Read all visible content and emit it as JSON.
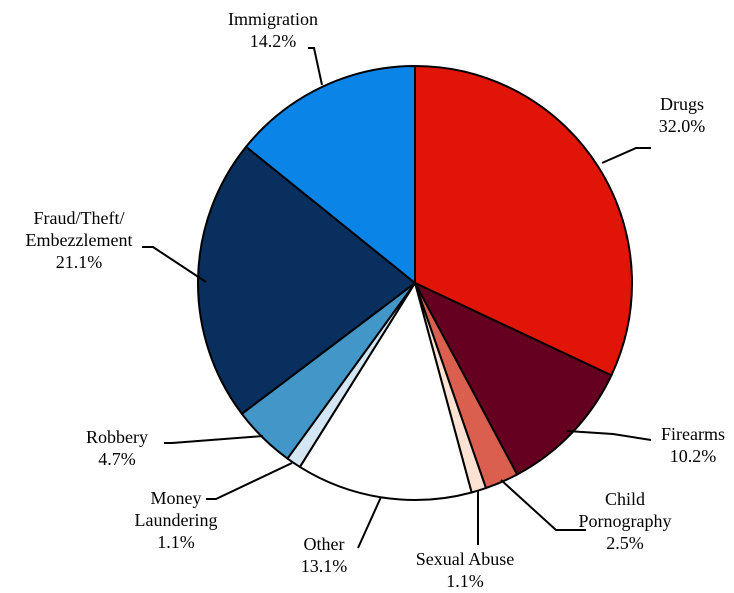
{
  "chart_data": {
    "type": "pie",
    "title": "",
    "slices": [
      {
        "label": "Drugs",
        "label_lines": [
          "Drugs"
        ],
        "value": 32.0,
        "value_text": "32.0%",
        "color": "#E01407"
      },
      {
        "label": "Firearms",
        "label_lines": [
          "Firearms"
        ],
        "value": 10.2,
        "value_text": "10.2%",
        "color": "#660020"
      },
      {
        "label": "Child Pornography",
        "label_lines": [
          "Child",
          "Pornography"
        ],
        "value": 2.5,
        "value_text": "2.5%",
        "color": "#DB5F4F"
      },
      {
        "label": "Sexual Abuse",
        "label_lines": [
          "Sexual Abuse"
        ],
        "value": 1.1,
        "value_text": "1.1%",
        "color": "#FCE2D2"
      },
      {
        "label": "Other",
        "label_lines": [
          "Other"
        ],
        "value": 13.1,
        "value_text": "13.1%",
        "color": "#FFFFFF"
      },
      {
        "label": "Money Laundering",
        "label_lines": [
          "Money",
          "Laundering"
        ],
        "value": 1.1,
        "value_text": "1.1%",
        "color": "#D4E6F3"
      },
      {
        "label": "Robbery",
        "label_lines": [
          "Robbery"
        ],
        "value": 4.7,
        "value_text": "4.7%",
        "color": "#4396C8"
      },
      {
        "label": "Fraud/Theft/Embezzlement",
        "label_lines": [
          "Fraud/Theft/",
          "Embezzlement"
        ],
        "value": 21.1,
        "value_text": "21.1%",
        "color": "#082F5E"
      },
      {
        "label": "Immigration",
        "label_lines": [
          "Immigration"
        ],
        "value": 14.2,
        "value_text": "14.2%",
        "color": "#0B84E8"
      }
    ]
  }
}
